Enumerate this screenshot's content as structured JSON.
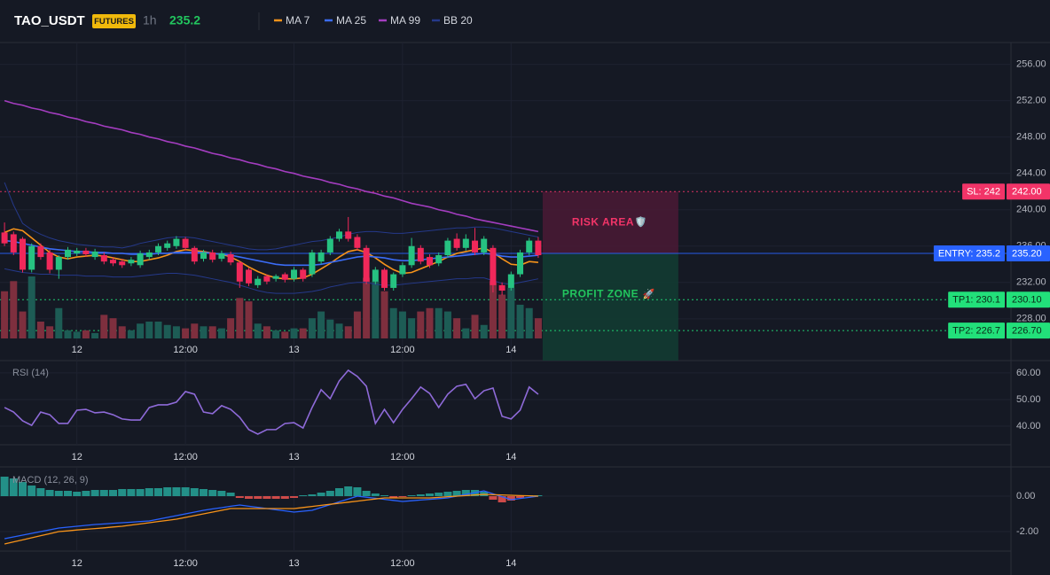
{
  "header": {
    "symbol": "TAO_USDT",
    "badge": "FUTURES",
    "interval": "1h",
    "price": 235.2
  },
  "chart_data": [
    {
      "type": "candlestick",
      "open": [
        237.5,
        237.3,
        236.8,
        233.4,
        236.0,
        235.3,
        233.4,
        234.8,
        235.2,
        235.5,
        234.8,
        235.0,
        234.5,
        234.3,
        234.1,
        233.9,
        234.8,
        235.3,
        235.8,
        236.0,
        236.8,
        235.8,
        234.6,
        235.3,
        234.6,
        235.1,
        234.2,
        233.4,
        231.7,
        232.7,
        232.4,
        232.9,
        232.4,
        233.4,
        232.9,
        234.3,
        235.3,
        236.8,
        237.6,
        237.0,
        235.8,
        232.1,
        233.4,
        231.4,
        232.9,
        233.9,
        235.8,
        234.8,
        234.1,
        235.0,
        236.8,
        235.8,
        236.6,
        235.3,
        235.8,
        231.7,
        231.4,
        232.9,
        235.3,
        236.6
      ],
      "high": [
        238.6,
        237.6,
        237.0,
        236.3,
        236.3,
        235.6,
        235.0,
        235.9,
        235.8,
        235.8,
        235.7,
        235.3,
        234.8,
        234.6,
        234.8,
        235.5,
        235.6,
        236.3,
        236.6,
        237.1,
        237.0,
        236.0,
        235.6,
        235.6,
        235.5,
        235.4,
        234.4,
        233.6,
        232.7,
        232.9,
        232.9,
        233.1,
        233.7,
        233.6,
        235.6,
        235.6,
        237.1,
        237.9,
        239.2,
        237.3,
        236.1,
        233.7,
        233.6,
        233.1,
        234.2,
        236.9,
        236.1,
        235.1,
        235.3,
        236.9,
        237.4,
        237.3,
        238.0,
        237.1,
        236.1,
        232.0,
        233.2,
        235.6,
        236.9,
        237.0
      ],
      "low": [
        236.0,
        235.0,
        233.1,
        233.1,
        234.5,
        233.0,
        232.4,
        234.5,
        234.9,
        234.8,
        234.5,
        234.0,
        233.8,
        233.6,
        233.8,
        233.6,
        234.5,
        235.0,
        235.5,
        235.7,
        235.5,
        234.0,
        234.3,
        234.2,
        234.3,
        233.9,
        231.4,
        231.6,
        231.4,
        231.8,
        232.1,
        232.0,
        232.1,
        232.1,
        232.6,
        234.0,
        235.0,
        236.5,
        236.5,
        235.5,
        231.8,
        231.8,
        231.1,
        231.1,
        232.6,
        233.6,
        234.0,
        233.6,
        233.8,
        234.7,
        235.5,
        235.5,
        235.0,
        235.0,
        230.9,
        230.6,
        231.1,
        232.6,
        235.0,
        234.7
      ],
      "close": [
        236.3,
        235.3,
        233.4,
        236.0,
        234.8,
        233.4,
        234.8,
        235.6,
        235.5,
        235.1,
        235.4,
        234.3,
        234.1,
        233.9,
        234.5,
        235.2,
        235.3,
        236.0,
        236.3,
        236.8,
        235.8,
        234.3,
        235.3,
        234.5,
        235.2,
        234.2,
        232.1,
        231.9,
        232.4,
        232.1,
        232.7,
        232.3,
        233.4,
        232.4,
        235.3,
        235.3,
        236.8,
        237.6,
        236.8,
        235.8,
        232.1,
        233.4,
        231.4,
        232.9,
        233.9,
        236.0,
        234.3,
        233.9,
        235.0,
        236.6,
        235.8,
        236.8,
        235.3,
        236.8,
        231.7,
        231.1,
        232.9,
        235.3,
        236.6,
        235.0
      ],
      "volume": [
        70,
        85,
        40,
        92,
        25,
        18,
        45,
        12,
        10,
        12,
        8,
        35,
        30,
        18,
        12,
        22,
        25,
        25,
        20,
        18,
        15,
        22,
        18,
        18,
        15,
        30,
        60,
        55,
        22,
        18,
        12,
        10,
        15,
        15,
        30,
        40,
        28,
        22,
        18,
        40,
        90,
        85,
        70,
        45,
        40,
        30,
        40,
        45,
        45,
        40,
        30,
        15,
        35,
        20,
        85,
        65,
        75,
        50,
        45,
        30
      ],
      "up_color": "#26c281",
      "down_color": "#f0285a",
      "up_volume_color": "#1d5c55",
      "down_volume_color": "#7e2f3e",
      "series": [
        {
          "name": "MA 7",
          "color": "#f7931a",
          "values": [
            237.5,
            237.9,
            237.7,
            236.9,
            236.1,
            235.3,
            234.8,
            234.6,
            234.8,
            234.9,
            235.0,
            234.9,
            234.7,
            234.5,
            234.3,
            234.3,
            234.5,
            234.7,
            235.0,
            235.4,
            235.6,
            235.5,
            235.4,
            235.2,
            235.1,
            234.8,
            234.3,
            233.7,
            233.2,
            232.8,
            232.5,
            232.4,
            232.4,
            232.5,
            232.9,
            233.5,
            234.1,
            234.8,
            235.4,
            235.6,
            235.3,
            234.7,
            234.0,
            233.4,
            233.0,
            233.1,
            233.5,
            233.9,
            234.3,
            234.8,
            235.2,
            235.4,
            235.6,
            235.8,
            235.3,
            234.6,
            234.0,
            233.9,
            234.3,
            234.2
          ]
        },
        {
          "name": "MA 25",
          "color": "#3b6cf6",
          "values": [
            236.6,
            236.5,
            236.3,
            236.1,
            235.9,
            235.7,
            235.6,
            235.5,
            235.4,
            235.4,
            235.3,
            235.3,
            235.2,
            235.2,
            235.1,
            235.1,
            235.1,
            235.2,
            235.2,
            235.3,
            235.3,
            235.3,
            235.3,
            235.2,
            235.1,
            235.0,
            234.8,
            234.6,
            234.4,
            234.2,
            234.0,
            233.9,
            233.9,
            233.9,
            233.9,
            234.0,
            234.2,
            234.4,
            234.6,
            234.8,
            234.9,
            234.8,
            234.7,
            234.5,
            234.4,
            234.4,
            234.5,
            234.6,
            234.7,
            234.8,
            234.9,
            235.0,
            235.1,
            235.2,
            235.1,
            234.9,
            234.8,
            234.8,
            234.9,
            235.0
          ]
        },
        {
          "name": "MA 99",
          "color": "#a43dc0",
          "values": [
            252.0,
            251.7,
            251.5,
            251.2,
            251.0,
            250.7,
            250.5,
            250.2,
            250.0,
            249.7,
            249.5,
            249.2,
            249.0,
            248.8,
            248.5,
            248.3,
            248.0,
            247.8,
            247.5,
            247.3,
            247.0,
            246.8,
            246.5,
            246.2,
            246.0,
            245.7,
            245.5,
            245.2,
            245.0,
            244.7,
            244.5,
            244.2,
            244.0,
            243.7,
            243.5,
            243.3,
            243.0,
            242.8,
            242.5,
            242.3,
            242.0,
            241.8,
            241.5,
            241.3,
            241.0,
            240.7,
            240.5,
            240.3,
            240.0,
            239.8,
            239.5,
            239.3,
            239.0,
            238.8,
            238.6,
            238.4,
            238.2,
            238.0,
            237.8,
            237.6
          ]
        },
        {
          "name": "BB 20",
          "color": "#25398a",
          "values": [
            243.0,
            240.5,
            238.5,
            237.8,
            237.3,
            236.9,
            236.6,
            236.4,
            236.2,
            236.1,
            236.0,
            235.9,
            235.9,
            235.8,
            236.0,
            236.3,
            236.5,
            236.7,
            236.9,
            237.0,
            237.0,
            236.9,
            236.7,
            236.5,
            236.3,
            236.1,
            235.9,
            235.7,
            235.6,
            235.6,
            235.7,
            235.9,
            236.1,
            236.3,
            236.5,
            236.6,
            236.8,
            237.0,
            237.3,
            237.5,
            237.6,
            237.6,
            237.5,
            237.4,
            237.4,
            237.5,
            237.6,
            237.7,
            237.8,
            237.9,
            238.0,
            238.0,
            238.1,
            238.1,
            238.0,
            237.8,
            237.6,
            237.4,
            237.2,
            237.0
          ],
          "lower": [
            233.5,
            233.3,
            233.1,
            233.0,
            232.9,
            232.9,
            232.8,
            232.8,
            232.8,
            232.7,
            232.7,
            232.7,
            232.6,
            232.6,
            232.6,
            232.7,
            232.8,
            232.9,
            233.0,
            233.0,
            232.9,
            232.8,
            232.6,
            232.4,
            232.2,
            232.0,
            231.7,
            231.4,
            231.1,
            230.9,
            230.8,
            230.8,
            230.8,
            230.9,
            231.0,
            231.2,
            231.5,
            231.7,
            231.9,
            232.0,
            232.0,
            231.8,
            231.7,
            231.7,
            231.8,
            231.9,
            232.0,
            232.1,
            232.2,
            232.3,
            232.4,
            232.4,
            232.5,
            232.5,
            232.2,
            231.9,
            231.8,
            232.0,
            232.2,
            232.4
          ]
        }
      ],
      "levels": [
        {
          "name": "SL: 242",
          "value": 242,
          "label": "242.00",
          "color": "#f23468",
          "text_color": "#ffffff",
          "dotted": true
        },
        {
          "name": "ENTRY: 235.2",
          "value": 235.2,
          "label": "235.20",
          "color": "#2962ff",
          "text_color": "#ffffff",
          "dotted": false
        },
        {
          "name": "TP1: 230.1",
          "value": 230.1,
          "label": "230.10",
          "color": "#22e07a",
          "text_color": "#0b2a18",
          "dotted": true
        },
        {
          "name": "TP2: 226.7",
          "value": 226.7,
          "label": "226.70",
          "color": "#22e07a",
          "text_color": "#0b2a18",
          "dotted": true
        }
      ],
      "zones": [
        {
          "label": "RISK AREA",
          "icon": "🛡️",
          "color": "#4a1a35",
          "text_color": "#f23468"
        },
        {
          "label": "PROFIT ZONE",
          "icon": "🚀",
          "color": "#123b32",
          "text_color": "#22c55e"
        }
      ],
      "xlim": [
        -0.5,
        111.26
      ],
      "xticks": [
        {
          "value": 8,
          "label": "12"
        },
        {
          "value": 20,
          "label": "12:00"
        },
        {
          "value": 32,
          "label": "13"
        },
        {
          "value": 44,
          "label": "12:00"
        },
        {
          "value": 56,
          "label": "14"
        }
      ],
      "ylim": [
        223.4,
        258.4
      ],
      "yticks": [
        {
          "value": 256,
          "label": "256.00"
        },
        {
          "value": 252,
          "label": "252.00"
        },
        {
          "value": 248,
          "label": "248.00"
        },
        {
          "value": 244,
          "label": "244.00"
        },
        {
          "value": 240,
          "label": "240.00"
        },
        {
          "value": 236,
          "label": "236.00"
        },
        {
          "value": 232,
          "label": "232.00"
        },
        {
          "value": 228,
          "label": "228.00"
        }
      ],
      "grid": true
    },
    {
      "type": "line",
      "title": "RSI (14)",
      "color": "#8e6ad8",
      "values": [
        47,
        45.3,
        42,
        40.3,
        45.3,
        44.3,
        41,
        41,
        46,
        46.3,
        45,
        45.3,
        44.3,
        42.7,
        42.3,
        42.3,
        47,
        48,
        48,
        49,
        53,
        52,
        45.3,
        44.7,
        47.7,
        46.3,
        43.3,
        38.7,
        37,
        38.7,
        38.7,
        41,
        41.3,
        39.3,
        47,
        53.7,
        50.3,
        57,
        61,
        58.7,
        55,
        41,
        46.3,
        41.3,
        46.3,
        50.3,
        54.7,
        52.3,
        47,
        52,
        55,
        55.7,
        50.3,
        53.3,
        54.3,
        43.7,
        42.7,
        46,
        54.7,
        52
      ],
      "xlim": [
        -0.5,
        111.26
      ],
      "xticks": [
        {
          "value": 8,
          "label": "12"
        },
        {
          "value": 20,
          "label": "12:00"
        },
        {
          "value": 32,
          "label": "13"
        },
        {
          "value": 44,
          "label": "12:00"
        },
        {
          "value": 56,
          "label": "14"
        }
      ],
      "ylim": [
        33,
        64.3
      ],
      "yticks": [
        {
          "value": 60,
          "label": "60.00"
        },
        {
          "value": 50,
          "label": "50.00"
        },
        {
          "value": 40,
          "label": "40.00"
        }
      ],
      "grid": true
    },
    {
      "type": "macd",
      "title": "MACD (12, 26, 9)",
      "histogram": [
        1.1,
        1.0,
        0.8,
        0.6,
        0.45,
        0.35,
        0.3,
        0.3,
        0.25,
        0.3,
        0.35,
        0.35,
        0.35,
        0.4,
        0.4,
        0.4,
        0.45,
        0.45,
        0.5,
        0.5,
        0.5,
        0.45,
        0.4,
        0.35,
        0.3,
        0.2,
        -0.1,
        -0.15,
        -0.15,
        -0.15,
        -0.15,
        -0.15,
        -0.1,
        0.05,
        0.1,
        0.2,
        0.3,
        0.45,
        0.55,
        0.5,
        0.3,
        0.15,
        0.05,
        -0.1,
        -0.05,
        0.05,
        0.1,
        0.15,
        0.2,
        0.25,
        0.3,
        0.35,
        0.35,
        0.25,
        -0.2,
        -0.35,
        -0.25,
        -0.1,
        0.05,
        0.05
      ],
      "macd": [
        -2.4,
        -2.3,
        -2.2,
        -2.1,
        -2.0,
        -1.9,
        -1.8,
        -1.75,
        -1.7,
        -1.65,
        -1.6,
        -1.57,
        -1.53,
        -1.5,
        -1.47,
        -1.43,
        -1.4,
        -1.3,
        -1.2,
        -1.1,
        -1.0,
        -0.9,
        -0.8,
        -0.72,
        -0.65,
        -0.57,
        -0.5,
        -0.57,
        -0.63,
        -0.7,
        -0.77,
        -0.83,
        -0.9,
        -0.85,
        -0.8,
        -0.64,
        -0.48,
        -0.32,
        -0.16,
        0,
        -0.06,
        -0.12,
        -0.18,
        -0.24,
        -0.3,
        -0.26,
        -0.22,
        -0.18,
        -0.14,
        -0.1,
        0,
        0.1,
        0.2,
        0.3,
        0.13,
        -0.03,
        -0.2,
        -0.13,
        -0.07,
        0
      ],
      "signal": [
        -2.7,
        -2.58,
        -2.47,
        -2.35,
        -2.23,
        -2.12,
        -2.0,
        -1.96,
        -1.91,
        -1.87,
        -1.83,
        -1.79,
        -1.74,
        -1.7,
        -1.63,
        -1.57,
        -1.5,
        -1.43,
        -1.37,
        -1.3,
        -1.2,
        -1.1,
        -1.0,
        -0.9,
        -0.8,
        -0.7,
        -0.7,
        -0.7,
        -0.7,
        -0.7,
        -0.7,
        -0.7,
        -0.7,
        -0.64,
        -0.58,
        -0.52,
        -0.46,
        -0.4,
        -0.34,
        -0.28,
        -0.22,
        -0.16,
        -0.1,
        -0.1,
        -0.1,
        -0.1,
        -0.1,
        -0.1,
        -0.07,
        -0.03,
        0,
        0.03,
        0.07,
        0.1,
        0.08,
        0.07,
        0.05,
        0.03,
        0.02,
        0
      ],
      "macd_color": "#2962ff",
      "signal_color": "#f7931a",
      "up_color": "#26a69a",
      "down_color": "#ef5350",
      "xlim": [
        -0.5,
        111.26
      ],
      "xticks": [
        {
          "value": 8,
          "label": "12"
        },
        {
          "value": 20,
          "label": "12:00"
        },
        {
          "value": 32,
          "label": "13"
        },
        {
          "value": 44,
          "label": "12:00"
        },
        {
          "value": 56,
          "label": "14"
        }
      ],
      "ylim": [
        -3.1,
        1.6
      ],
      "yticks": [
        {
          "value": 0,
          "label": "0.00"
        },
        {
          "value": -2,
          "label": "-2.00"
        }
      ],
      "grid": true
    }
  ]
}
